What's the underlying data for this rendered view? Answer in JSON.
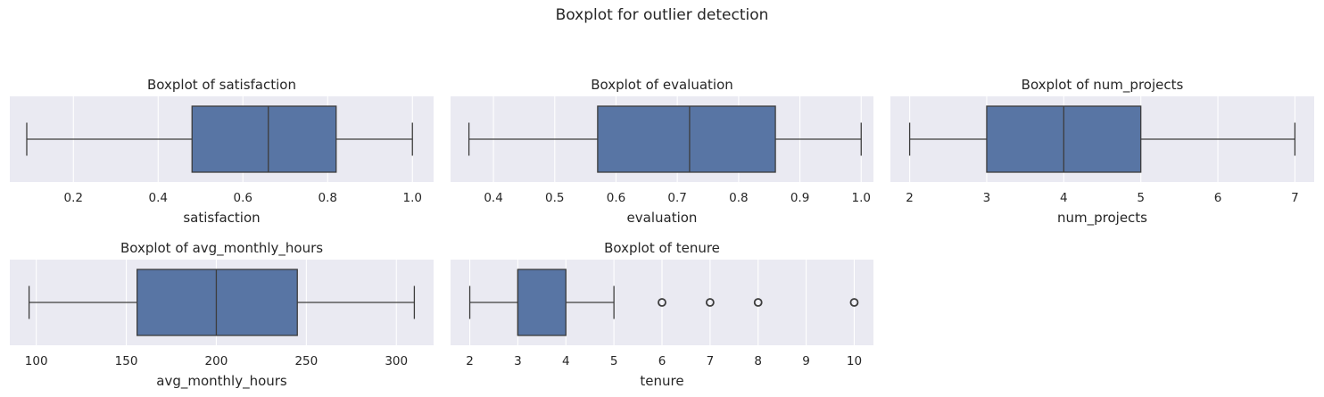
{
  "figure": {
    "suptitle": "Boxplot for outlier detection"
  },
  "colors": {
    "panel_bg": "#eaeaf2",
    "grid": "#ffffff",
    "box_fill": "#5875a4",
    "line": "#3d3d3d"
  },
  "chart_data": [
    {
      "type": "box",
      "title": "Boxplot of satisfaction",
      "xlabel": "satisfaction",
      "xlim": [
        0.05,
        1.05
      ],
      "ticks": [
        0.2,
        0.4,
        0.6,
        0.8,
        1.0
      ],
      "tick_labels": [
        "0.2",
        "0.4",
        "0.6",
        "0.8",
        "1.0"
      ],
      "grid": true,
      "box": {
        "whisker_low": 0.09,
        "q1": 0.48,
        "median": 0.66,
        "q3": 0.82,
        "whisker_high": 1.0,
        "outliers": []
      }
    },
    {
      "type": "box",
      "title": "Boxplot of evaluation",
      "xlabel": "evaluation",
      "xlim": [
        0.33,
        1.02
      ],
      "ticks": [
        0.4,
        0.5,
        0.6,
        0.7,
        0.8,
        0.9,
        1.0
      ],
      "tick_labels": [
        "0.4",
        "0.5",
        "0.6",
        "0.7",
        "0.8",
        "0.9",
        "1.0"
      ],
      "grid": true,
      "box": {
        "whisker_low": 0.36,
        "q1": 0.57,
        "median": 0.72,
        "q3": 0.86,
        "whisker_high": 1.0,
        "outliers": []
      }
    },
    {
      "type": "box",
      "title": "Boxplot of num_projects",
      "xlabel": "num_projects",
      "xlim": [
        1.75,
        7.25
      ],
      "ticks": [
        2,
        3,
        4,
        5,
        6,
        7
      ],
      "tick_labels": [
        "2",
        "3",
        "4",
        "5",
        "6",
        "7"
      ],
      "grid": true,
      "box": {
        "whisker_low": 2,
        "q1": 3,
        "median": 4,
        "q3": 5,
        "whisker_high": 7,
        "outliers": []
      }
    },
    {
      "type": "box",
      "title": "Boxplot of avg_monthly_hours",
      "xlabel": "avg_monthly_hours",
      "xlim": [
        85.3,
        320.7
      ],
      "ticks": [
        100,
        150,
        200,
        250,
        300
      ],
      "tick_labels": [
        "100",
        "150",
        "200",
        "250",
        "300"
      ],
      "grid": true,
      "box": {
        "whisker_low": 96,
        "q1": 156,
        "median": 200,
        "q3": 245,
        "whisker_high": 310,
        "outliers": []
      }
    },
    {
      "type": "box",
      "title": "Boxplot of tenure",
      "xlabel": "tenure",
      "xlim": [
        1.6,
        10.4
      ],
      "ticks": [
        2,
        3,
        4,
        5,
        6,
        7,
        8,
        9,
        10
      ],
      "tick_labels": [
        "2",
        "3",
        "4",
        "5",
        "6",
        "7",
        "8",
        "9",
        "10"
      ],
      "grid": true,
      "box": {
        "whisker_low": 2,
        "q1": 3,
        "median": 3,
        "q3": 4,
        "whisker_high": 5,
        "outliers": [
          6,
          7,
          8,
          10
        ]
      }
    }
  ]
}
